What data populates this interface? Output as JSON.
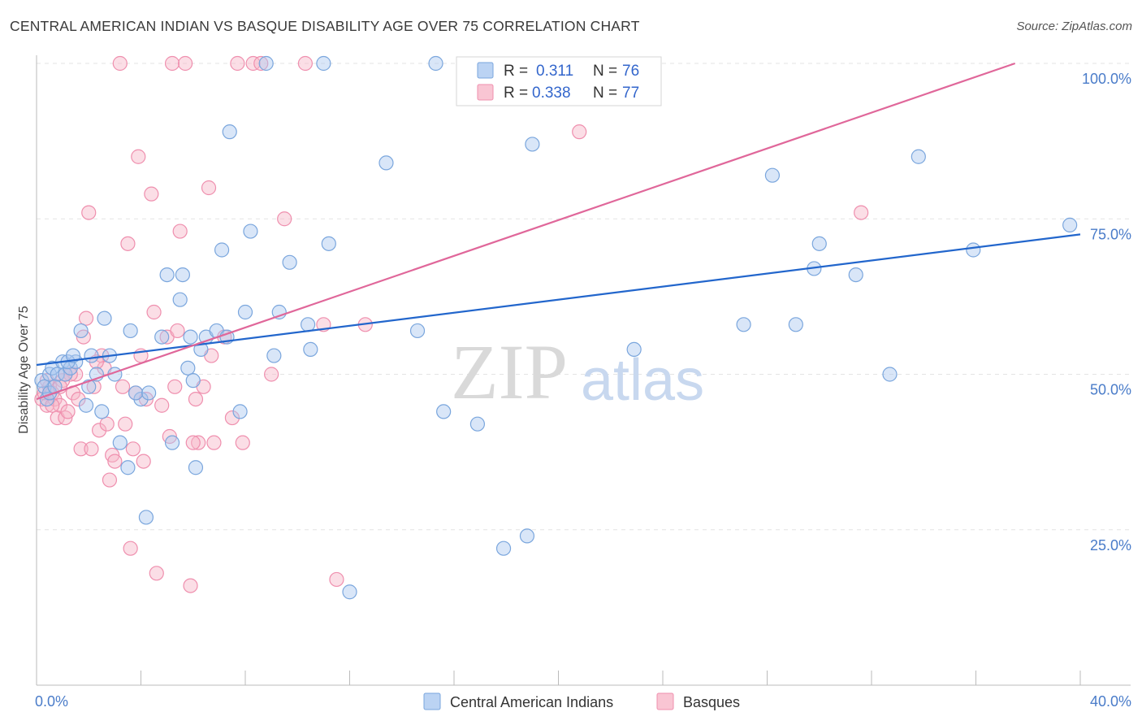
{
  "title": "CENTRAL AMERICAN INDIAN VS BASQUE DISABILITY AGE OVER 75 CORRELATION CHART",
  "source": "Source: ZipAtlas.com",
  "watermark": {
    "zip": "ZIP",
    "atlas": "atlas"
  },
  "colors": {
    "blue_fill": "#aac8f0",
    "blue_stroke": "#7aa6dd",
    "blue_line": "#2266cc",
    "pink_fill": "#f7b6c8",
    "pink_stroke": "#ef8fae",
    "pink_line": "#e0679a",
    "tick_text": "#4a7cc9",
    "grid": "#e3e3e3"
  },
  "legend": {
    "rows": [
      {
        "r_label": "R =",
        "r_value": "0.311",
        "n_label": "N =",
        "n_value": "76"
      },
      {
        "r_label": "R =",
        "r_value": "0.338",
        "n_label": "N =",
        "n_value": "77"
      }
    ]
  },
  "bottom_legend": [
    "Central American Indians",
    "Basques"
  ],
  "chart_data": {
    "type": "scatter",
    "ylabel": "Disability Age Over 75",
    "xlabel": "",
    "xlim": [
      0,
      40
    ],
    "ylim": [
      0,
      100
    ],
    "x_tick_labels": [
      "0.0%",
      "40.0%"
    ],
    "y_tick_labels": [
      "25.0%",
      "50.0%",
      "75.0%",
      "100.0%"
    ],
    "y_tick_values": [
      25,
      50,
      75,
      100
    ],
    "grid": true,
    "legend_position": "top-center",
    "series": [
      {
        "name": "Central American Indians",
        "color": "blue",
        "regression": {
          "x": [
            0,
            40
          ],
          "y": [
            51.5,
            72.5
          ]
        },
        "points": [
          [
            0.2,
            49
          ],
          [
            0.3,
            48
          ],
          [
            0.4,
            46
          ],
          [
            0.5,
            50
          ],
          [
            0.6,
            51
          ],
          [
            0.8,
            50
          ],
          [
            1.0,
            52
          ],
          [
            1.1,
            50
          ],
          [
            1.3,
            51
          ],
          [
            1.5,
            52
          ],
          [
            1.7,
            57
          ],
          [
            1.9,
            45
          ],
          [
            2.1,
            53
          ],
          [
            2.3,
            50
          ],
          [
            2.5,
            44
          ],
          [
            2.6,
            59
          ],
          [
            2.8,
            53
          ],
          [
            3.0,
            50
          ],
          [
            3.2,
            39
          ],
          [
            3.5,
            35
          ],
          [
            3.6,
            57
          ],
          [
            4.0,
            46
          ],
          [
            4.2,
            27
          ],
          [
            4.8,
            56
          ],
          [
            5.0,
            66
          ],
          [
            5.2,
            39
          ],
          [
            5.5,
            62
          ],
          [
            5.6,
            66
          ],
          [
            5.9,
            56
          ],
          [
            6.1,
            35
          ],
          [
            6.3,
            54
          ],
          [
            6.5,
            56
          ],
          [
            6.9,
            57
          ],
          [
            7.1,
            70
          ],
          [
            7.3,
            56
          ],
          [
            7.4,
            89
          ],
          [
            7.8,
            44
          ],
          [
            8.0,
            60
          ],
          [
            8.2,
            73
          ],
          [
            8.8,
            100
          ],
          [
            9.1,
            53
          ],
          [
            9.3,
            60
          ],
          [
            9.7,
            68
          ],
          [
            10.4,
            58
          ],
          [
            10.5,
            54
          ],
          [
            11.0,
            100
          ],
          [
            11.2,
            71
          ],
          [
            12.0,
            15
          ],
          [
            13.4,
            84
          ],
          [
            14.6,
            57
          ],
          [
            15.3,
            100
          ],
          [
            15.6,
            44
          ],
          [
            16.9,
            42
          ],
          [
            17.9,
            22
          ],
          [
            18.8,
            24
          ],
          [
            19.0,
            87
          ],
          [
            22.9,
            54
          ],
          [
            27.1,
            58
          ],
          [
            28.2,
            82
          ],
          [
            29.1,
            58
          ],
          [
            29.8,
            67
          ],
          [
            30.0,
            71
          ],
          [
            31.4,
            66
          ],
          [
            32.7,
            50
          ],
          [
            33.8,
            85
          ],
          [
            35.9,
            70
          ],
          [
            39.6,
            74
          ],
          [
            0.5,
            47
          ],
          [
            0.7,
            48
          ],
          [
            1.2,
            52
          ],
          [
            3.8,
            47
          ],
          [
            4.3,
            47
          ],
          [
            5.8,
            51
          ],
          [
            2.0,
            48
          ],
          [
            1.4,
            53
          ],
          [
            6.0,
            49
          ]
        ]
      },
      {
        "name": "Basques",
        "color": "pink",
        "regression": {
          "x": [
            0,
            37.5
          ],
          "y": [
            46,
            100
          ]
        },
        "points": [
          [
            0.2,
            46
          ],
          [
            0.3,
            47
          ],
          [
            0.4,
            45
          ],
          [
            0.5,
            48
          ],
          [
            0.6,
            47
          ],
          [
            0.7,
            46
          ],
          [
            0.8,
            43
          ],
          [
            0.9,
            45
          ],
          [
            1.0,
            49
          ],
          [
            1.1,
            43
          ],
          [
            1.2,
            44
          ],
          [
            1.4,
            47
          ],
          [
            1.5,
            50
          ],
          [
            1.6,
            46
          ],
          [
            1.7,
            38
          ],
          [
            1.8,
            56
          ],
          [
            1.9,
            59
          ],
          [
            2.0,
            76
          ],
          [
            2.1,
            38
          ],
          [
            2.2,
            48
          ],
          [
            2.4,
            41
          ],
          [
            2.5,
            53
          ],
          [
            2.6,
            51
          ],
          [
            2.8,
            33
          ],
          [
            2.9,
            37
          ],
          [
            3.0,
            36
          ],
          [
            3.2,
            100
          ],
          [
            3.4,
            42
          ],
          [
            3.5,
            71
          ],
          [
            3.6,
            22
          ],
          [
            3.7,
            38
          ],
          [
            3.8,
            47
          ],
          [
            3.9,
            85
          ],
          [
            4.0,
            53
          ],
          [
            4.1,
            36
          ],
          [
            4.4,
            79
          ],
          [
            4.5,
            60
          ],
          [
            4.6,
            18
          ],
          [
            4.8,
            45
          ],
          [
            5.0,
            56
          ],
          [
            5.1,
            40
          ],
          [
            5.2,
            100
          ],
          [
            5.4,
            57
          ],
          [
            5.5,
            73
          ],
          [
            5.7,
            100
          ],
          [
            5.9,
            16
          ],
          [
            6.1,
            46
          ],
          [
            6.2,
            39
          ],
          [
            6.4,
            48
          ],
          [
            6.6,
            80
          ],
          [
            6.8,
            39
          ],
          [
            7.2,
            56
          ],
          [
            7.5,
            43
          ],
          [
            7.7,
            100
          ],
          [
            7.9,
            39
          ],
          [
            8.3,
            100
          ],
          [
            8.6,
            100
          ],
          [
            9.5,
            75
          ],
          [
            10.3,
            100
          ],
          [
            11.0,
            58
          ],
          [
            11.5,
            17
          ],
          [
            12.6,
            58
          ],
          [
            20.8,
            89
          ],
          [
            31.6,
            76
          ],
          [
            0.4,
            49
          ],
          [
            0.6,
            45
          ],
          [
            1.3,
            50
          ],
          [
            2.7,
            42
          ],
          [
            3.3,
            48
          ],
          [
            4.2,
            46
          ],
          [
            5.3,
            48
          ],
          [
            1.1,
            50
          ],
          [
            2.3,
            52
          ],
          [
            6.0,
            39
          ],
          [
            6.7,
            53
          ],
          [
            9.0,
            50
          ],
          [
            0.9,
            48
          ]
        ]
      }
    ]
  }
}
